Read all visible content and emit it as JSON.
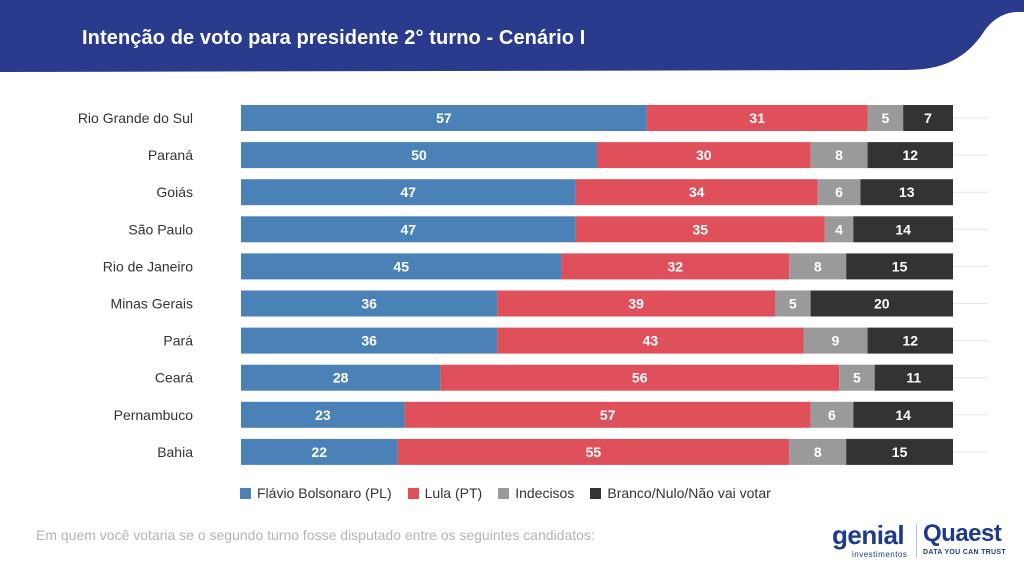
{
  "header": {
    "title": "Intenção de voto para presidente 2° turno - Cenário I",
    "background_color": "#2a3a8c"
  },
  "chart_data": {
    "type": "bar",
    "orientation": "horizontal",
    "stacked": true,
    "title": "Intenção de voto para presidente 2° turno - Cenário I",
    "xlabel": "",
    "ylabel": "",
    "xlim": [
      0,
      100
    ],
    "grid": true,
    "legend_position": "bottom",
    "categories": [
      "Rio Grande do Sul",
      "Paraná",
      "Goiás",
      "São Paulo",
      "Rio de Janeiro",
      "Minas Gerais",
      "Pará",
      "Ceará",
      "Pernambuco",
      "Bahia"
    ],
    "series": [
      {
        "name": "Flávio Bolsonaro (PL)",
        "color": "#4a82b8",
        "values": [
          57,
          50,
          47,
          47,
          45,
          36,
          36,
          28,
          23,
          22
        ]
      },
      {
        "name": "Lula (PT)",
        "color": "#e0505a",
        "values": [
          31,
          30,
          34,
          35,
          32,
          39,
          43,
          56,
          57,
          55
        ]
      },
      {
        "name": "Indecisos",
        "color": "#9a9a9a",
        "values": [
          5,
          8,
          6,
          4,
          8,
          5,
          9,
          5,
          6,
          8
        ]
      },
      {
        "name": "Branco/Nulo/Não vai votar",
        "color": "#333333",
        "values": [
          7,
          12,
          13,
          14,
          15,
          20,
          12,
          11,
          14,
          15
        ]
      }
    ]
  },
  "footnote": "Em quem você votaria se o segundo turno fosse disputado entre os seguintes candidatos:",
  "logos": {
    "genial": "genial",
    "genial_sub": "investimentos",
    "quaest": "Quaest",
    "quaest_sub": "DATA YOU CAN TRUST"
  }
}
